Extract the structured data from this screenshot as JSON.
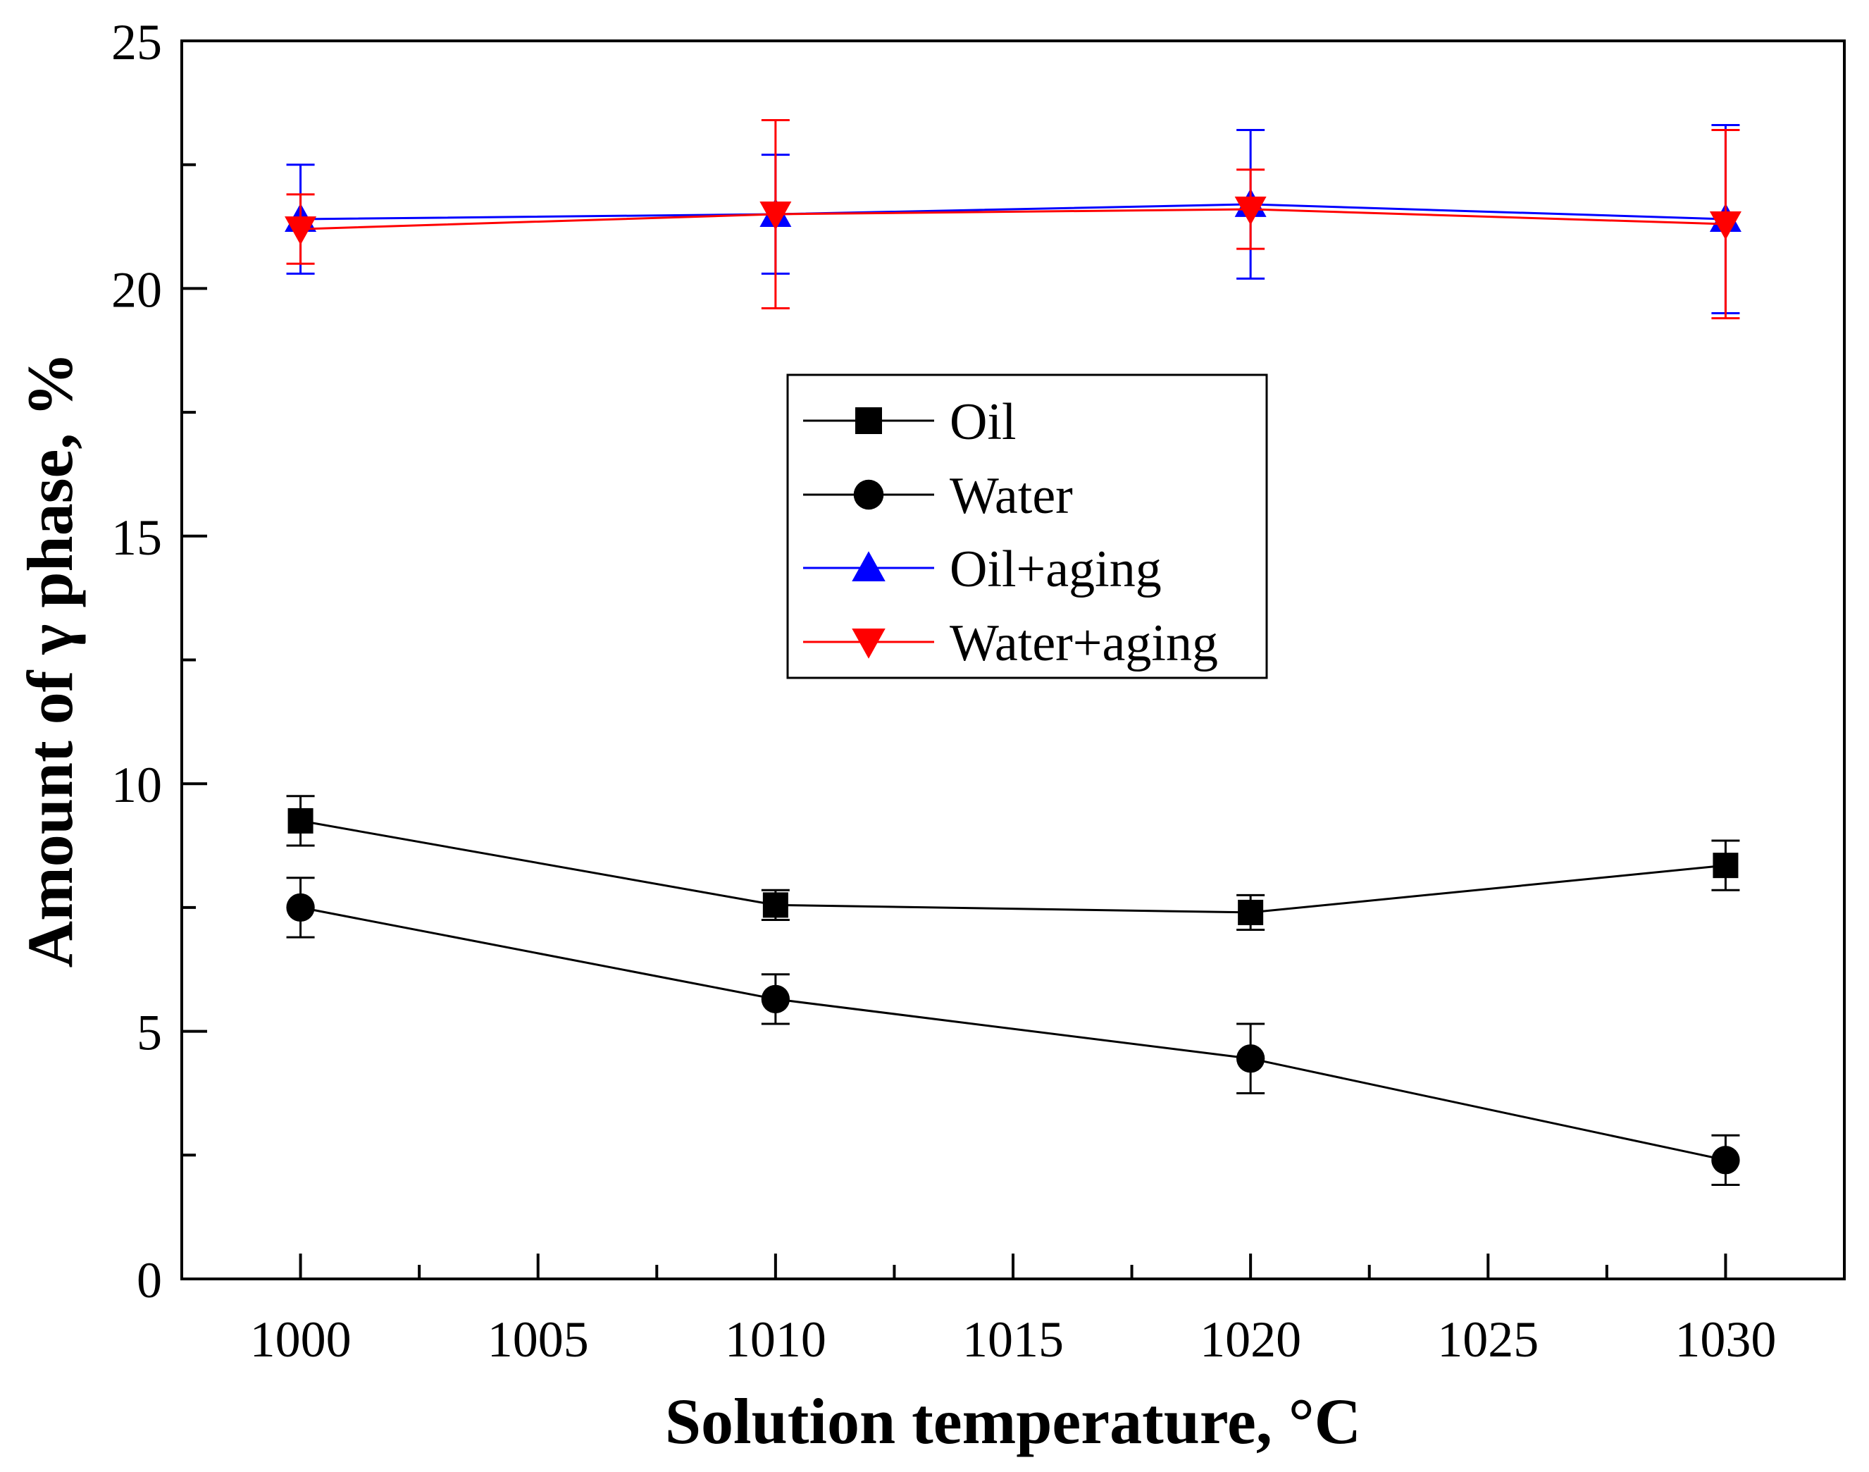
{
  "chart_data": {
    "type": "line",
    "title": "",
    "xlabel": "Solution temperature, °C",
    "ylabel": "Amount of γ phase, %",
    "xlim": [
      997.5,
      1032.5
    ],
    "ylim": [
      0,
      25
    ],
    "x_ticks": [
      1000,
      1005,
      1010,
      1015,
      1020,
      1025,
      1030
    ],
    "y_ticks": [
      0,
      5,
      10,
      15,
      20,
      25
    ],
    "x_tick_labels": [
      "1000",
      "1005",
      "1010",
      "1015",
      "1020",
      "1025",
      "1030"
    ],
    "y_tick_labels": [
      "0",
      "5",
      "10",
      "15",
      "20",
      "25"
    ],
    "grid": false,
    "legend_position": "center",
    "x": [
      1000,
      1010,
      1020,
      1030
    ],
    "series": [
      {
        "name": "Oil",
        "color": "#000000",
        "marker": "square",
        "values": [
          9.25,
          7.55,
          7.4,
          8.35
        ],
        "errors": [
          0.5,
          0.3,
          0.35,
          0.5
        ]
      },
      {
        "name": "Water",
        "color": "#000000",
        "marker": "circle",
        "values": [
          7.5,
          5.65,
          4.45,
          2.4
        ],
        "errors": [
          0.6,
          0.5,
          0.7,
          0.5
        ]
      },
      {
        "name": "Oil+aging",
        "color": "#0000ff",
        "marker": "triangle-up",
        "values": [
          21.4,
          21.5,
          21.7,
          21.4
        ],
        "errors": [
          1.1,
          1.2,
          1.5,
          1.9
        ]
      },
      {
        "name": "Water+aging",
        "color": "#ff0000",
        "marker": "triangle-down",
        "values": [
          21.2,
          21.5,
          21.6,
          21.3
        ],
        "errors": [
          0.7,
          1.9,
          0.8,
          1.9
        ]
      }
    ]
  }
}
